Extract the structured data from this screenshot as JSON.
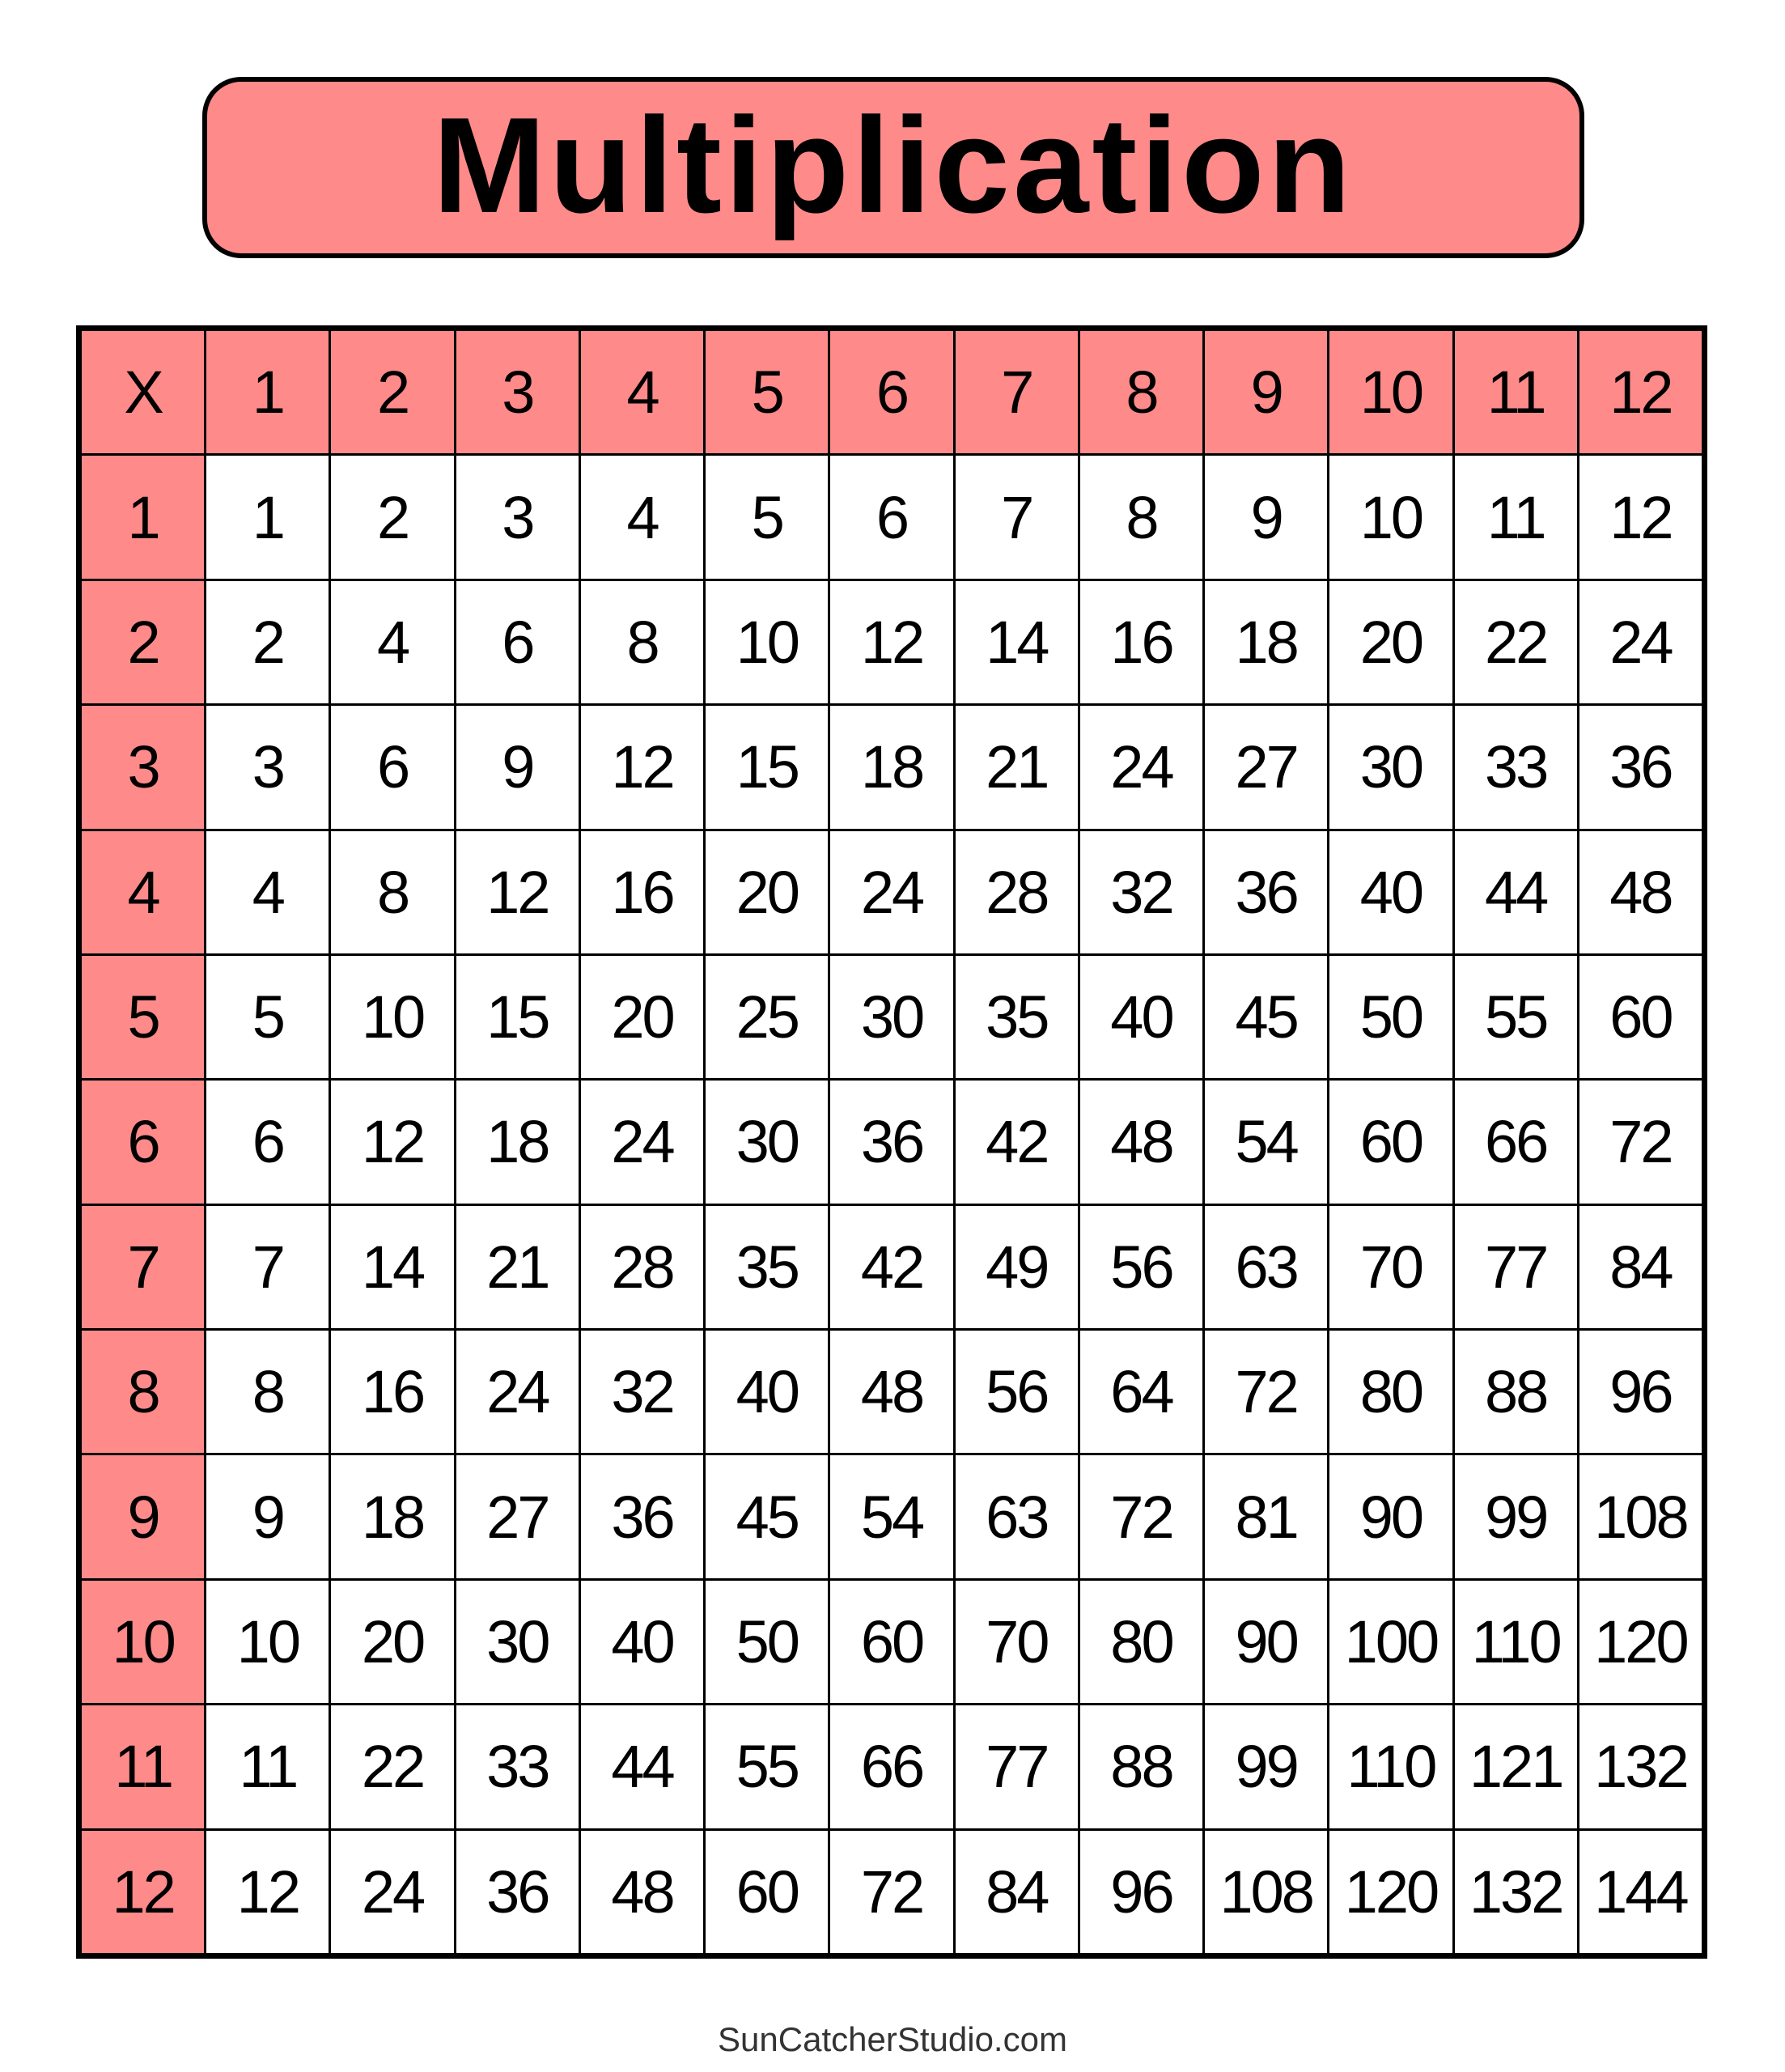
{
  "title": "Multiplication",
  "corner_label": "X",
  "column_headers": [
    "1",
    "2",
    "3",
    "4",
    "5",
    "6",
    "7",
    "8",
    "9",
    "10",
    "11",
    "12"
  ],
  "rows": [
    {
      "header": "1",
      "values": [
        "1",
        "2",
        "3",
        "4",
        "5",
        "6",
        "7",
        "8",
        "9",
        "10",
        "11",
        "12"
      ]
    },
    {
      "header": "2",
      "values": [
        "2",
        "4",
        "6",
        "8",
        "10",
        "12",
        "14",
        "16",
        "18",
        "20",
        "22",
        "24"
      ]
    },
    {
      "header": "3",
      "values": [
        "3",
        "6",
        "9",
        "12",
        "15",
        "18",
        "21",
        "24",
        "27",
        "30",
        "33",
        "36"
      ]
    },
    {
      "header": "4",
      "values": [
        "4",
        "8",
        "12",
        "16",
        "20",
        "24",
        "28",
        "32",
        "36",
        "40",
        "44",
        "48"
      ]
    },
    {
      "header": "5",
      "values": [
        "5",
        "10",
        "15",
        "20",
        "25",
        "30",
        "35",
        "40",
        "45",
        "50",
        "55",
        "60"
      ]
    },
    {
      "header": "6",
      "values": [
        "6",
        "12",
        "18",
        "24",
        "30",
        "36",
        "42",
        "48",
        "54",
        "60",
        "66",
        "72"
      ]
    },
    {
      "header": "7",
      "values": [
        "7",
        "14",
        "21",
        "28",
        "35",
        "42",
        "49",
        "56",
        "63",
        "70",
        "77",
        "84"
      ]
    },
    {
      "header": "8",
      "values": [
        "8",
        "16",
        "24",
        "32",
        "40",
        "48",
        "56",
        "64",
        "72",
        "80",
        "88",
        "96"
      ]
    },
    {
      "header": "9",
      "values": [
        "9",
        "18",
        "27",
        "36",
        "45",
        "54",
        "63",
        "72",
        "81",
        "90",
        "99",
        "108"
      ]
    },
    {
      "header": "10",
      "values": [
        "10",
        "20",
        "30",
        "40",
        "50",
        "60",
        "70",
        "80",
        "90",
        "100",
        "110",
        "120"
      ]
    },
    {
      "header": "11",
      "values": [
        "11",
        "22",
        "33",
        "44",
        "55",
        "66",
        "77",
        "88",
        "99",
        "110",
        "121",
        "132"
      ]
    },
    {
      "header": "12",
      "values": [
        "12",
        "24",
        "36",
        "48",
        "60",
        "72",
        "84",
        "96",
        "108",
        "120",
        "132",
        "144"
      ]
    }
  ],
  "footer": "SunCatcherStudio.com",
  "colors": {
    "header_fill": "#FF8A8A",
    "border": "#000000",
    "cell_fill": "#FFFFFF"
  }
}
